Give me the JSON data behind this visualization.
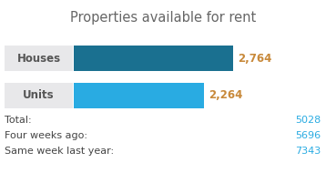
{
  "title": "Properties available for rent",
  "categories": [
    "Houses",
    "Units"
  ],
  "values": [
    2764,
    2264
  ],
  "bar_colors": [
    "#1a7090",
    "#29abe2"
  ],
  "label_bg_color": "#e8e8ea",
  "value_color": "#c8893a",
  "title_color": "#666666",
  "text_color": "#444444",
  "stats_labels": [
    "Total:",
    "Four weeks ago:",
    "Same week last year:"
  ],
  "stats_values": [
    "5028",
    "5696",
    "7343"
  ],
  "stats_value_color": "#29abe2",
  "max_val": 3000,
  "background_color": "#ffffff",
  "cat_label_color": "#555555"
}
